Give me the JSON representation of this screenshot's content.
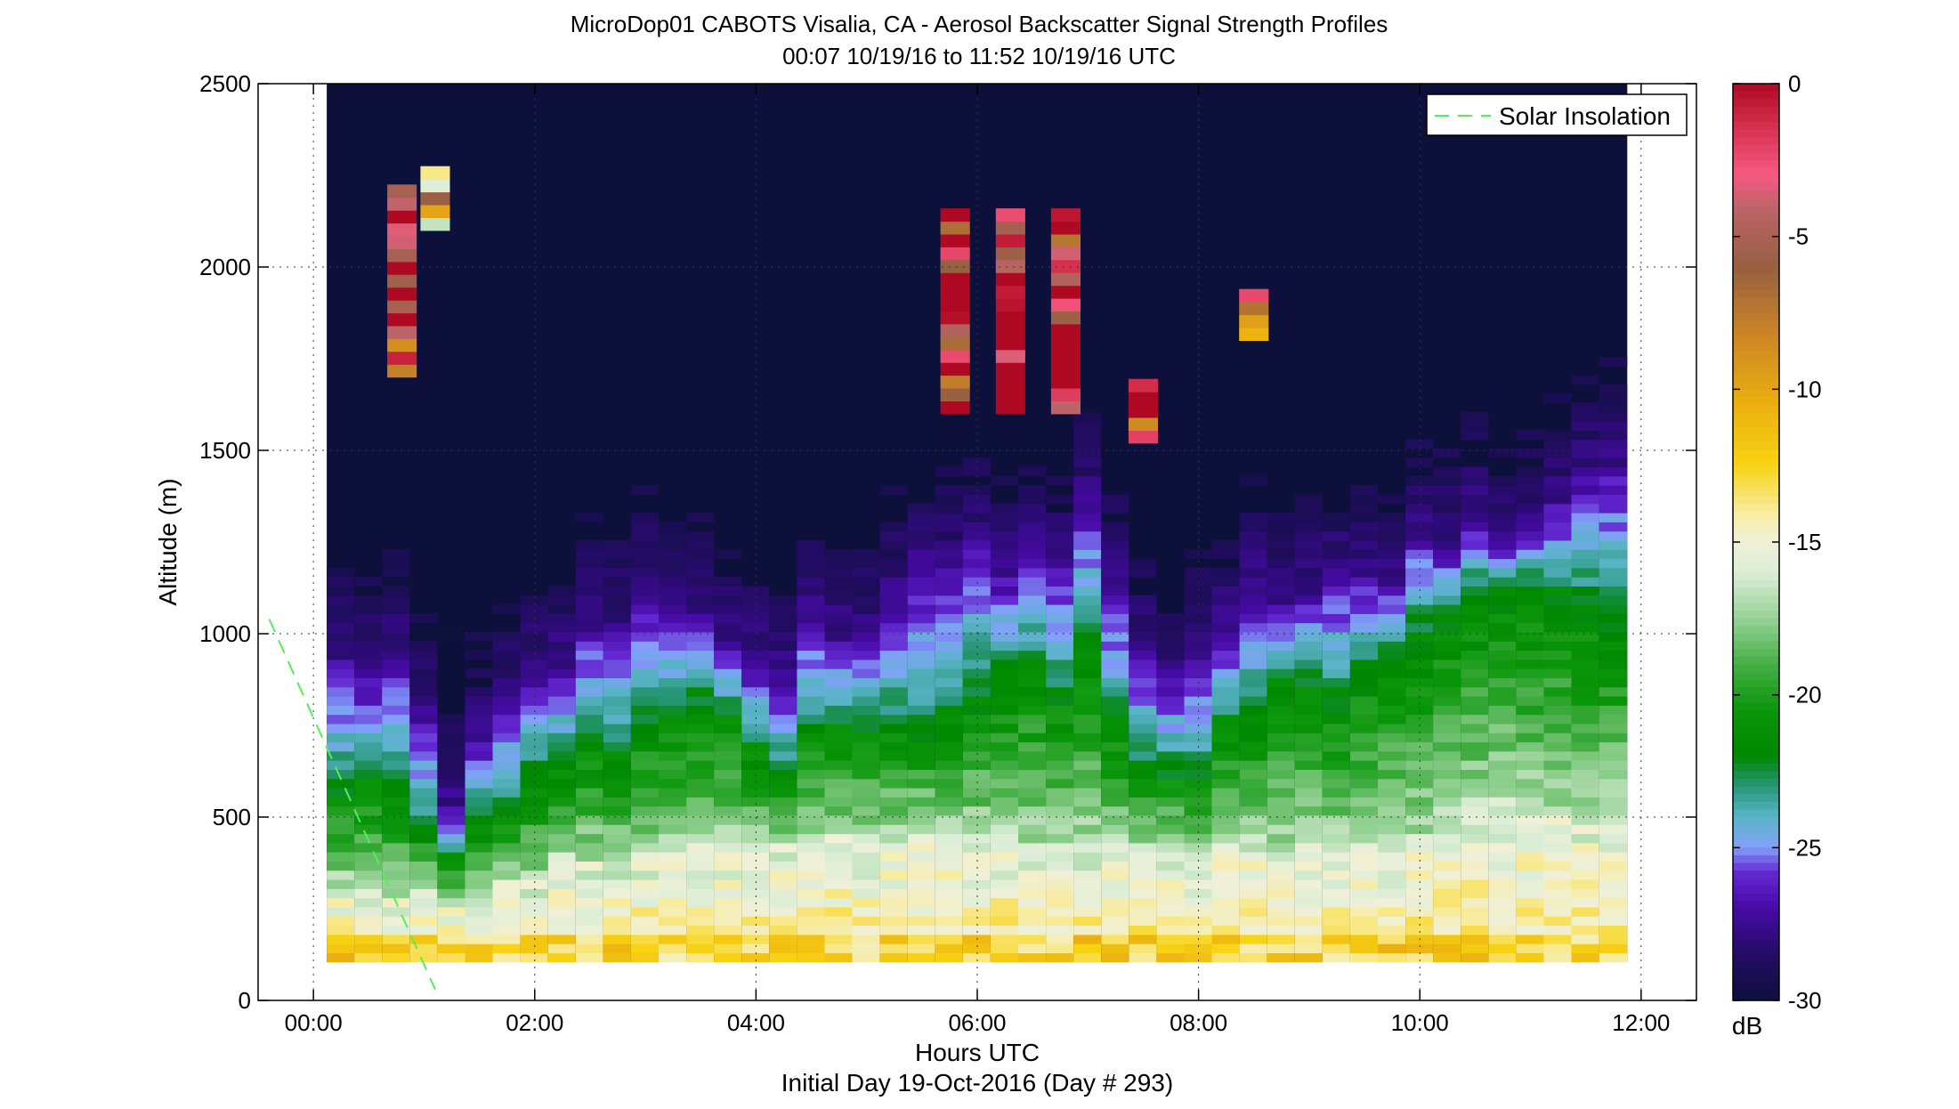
{
  "chart_data": {
    "type": "heatmap",
    "title": "MicroDop01 CABOTS Visalia, CA - Aerosol Backscatter Signal Strength Profiles",
    "subtitle": "00:07 10/19/16 to 11:52 10/19/16  UTC",
    "xlabel": "Hours UTC",
    "footnote": "Initial Day 19-Oct-2016 (Day # 293)",
    "ylabel": "Altitude (m)",
    "xlim": [
      -0.5,
      12.5
    ],
    "ylim": [
      0,
      2500
    ],
    "x_ticks": [
      0,
      2,
      4,
      6,
      8,
      10,
      12
    ],
    "x_tick_labels": [
      "00:00",
      "02:00",
      "04:00",
      "06:00",
      "08:00",
      "10:00",
      "12:00"
    ],
    "y_ticks": [
      0,
      500,
      1000,
      1500,
      2000,
      2500
    ],
    "y_tick_labels": [
      "0",
      "500",
      "1000",
      "1500",
      "2000",
      "2500"
    ],
    "grid": "dotted",
    "legend": {
      "position": "top-right",
      "entries": [
        {
          "label": "Solar Insolation",
          "style": "dashed",
          "color": "#66ee66"
        }
      ]
    },
    "solar_insolation_line": [
      {
        "x": -0.4,
        "y": 1040
      },
      {
        "x": 1.1,
        "y": 30
      }
    ],
    "colorbar": {
      "label": "dB",
      "range": [
        -30,
        0
      ],
      "ticks": [
        0,
        -5,
        -10,
        -15,
        -20,
        -25,
        -30
      ],
      "tick_labels": [
        "0",
        "-5",
        "-10",
        "-15",
        "-20",
        "-25",
        "-30"
      ]
    },
    "profiles": {
      "time_start": 0.12,
      "time_end": 11.87,
      "n_profiles": 47,
      "altitude_bin_m": 25,
      "bottom_altitude_m": 105,
      "key_times": [
        0.12,
        0.7,
        1.1,
        1.5,
        2.0,
        2.5,
        3.0,
        3.5,
        4.0,
        4.2,
        4.4,
        5.0,
        5.5,
        5.7,
        6.0,
        6.3,
        6.6,
        6.9,
        7.2,
        7.5,
        7.75,
        8.0,
        8.3,
        8.7,
        9.0,
        9.5,
        10.0,
        10.5,
        11.0,
        11.5,
        11.87
      ],
      "aerosol_top_m": [
        900,
        880,
        550,
        700,
        850,
        1000,
        1050,
        1000,
        900,
        780,
        1000,
        1000,
        1150,
        1200,
        1150,
        1200,
        1100,
        1350,
        1050,
        950,
        800,
        1000,
        1050,
        1100,
        1100,
        1150,
        1200,
        1250,
        1350,
        1400,
        1450
      ],
      "green_top_m": [
        600,
        580,
        380,
        550,
        650,
        700,
        780,
        800,
        700,
        550,
        800,
        750,
        800,
        850,
        850,
        900,
        850,
        1050,
        700,
        650,
        550,
        700,
        750,
        850,
        850,
        900,
        1050,
        1100,
        1150,
        1100,
        1050
      ],
      "surface_top_m": [
        300,
        280,
        250,
        300,
        350,
        370,
        380,
        400,
        400,
        400,
        420,
        420,
        450,
        430,
        430,
        430,
        420,
        430,
        430,
        420,
        380,
        400,
        420,
        420,
        420,
        420,
        480,
        550,
        520,
        500,
        480
      ],
      "cloud_patches": [
        {
          "time": 0.8,
          "bottom_m": 1700,
          "top_m": 2200,
          "signal_db": -2
        },
        {
          "time": 1.1,
          "bottom_m": 2100,
          "top_m": 2260,
          "signal_db": -12
        },
        {
          "time": 6.3,
          "bottom_m": 1600,
          "top_m": 2150,
          "signal_db": -1
        },
        {
          "time": 7.5,
          "bottom_m": 1520,
          "top_m": 1690,
          "signal_db": -2
        },
        {
          "time": 8.5,
          "bottom_m": 1800,
          "top_m": 1920,
          "signal_db": -8
        }
      ]
    }
  }
}
